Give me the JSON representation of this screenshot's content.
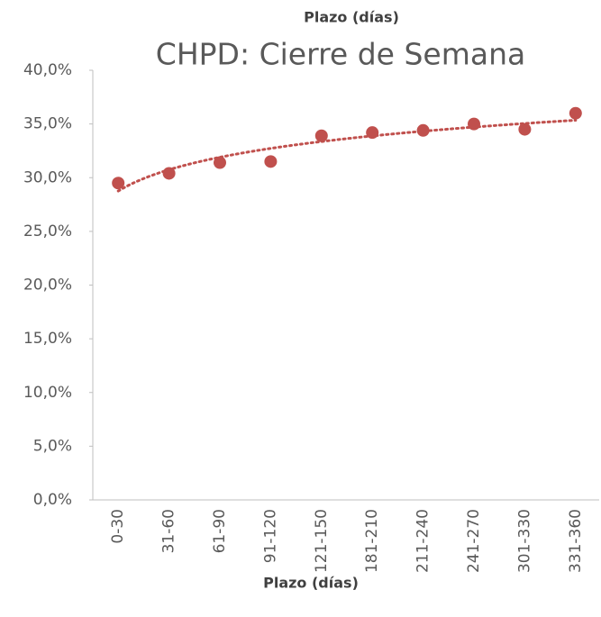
{
  "chart_data": {
    "type": "scatter",
    "title": "CHPD: Cierre de Semana",
    "subtitle": "Plazo (días)",
    "x_label": "Plazo (días)",
    "categories": [
      "0-30",
      "31-60",
      "61-90",
      "91-120",
      "121-150",
      "181-210",
      "211-240",
      "241-270",
      "301-330",
      "331-360"
    ],
    "values": [
      29.5,
      30.4,
      31.4,
      31.5,
      33.9,
      34.2,
      34.4,
      35.0,
      34.5,
      36.0
    ],
    "color": "#c0504d",
    "trendline": "logarithmic",
    "ylim": [
      0,
      40
    ],
    "yticks": [
      {
        "value": 0,
        "label": "0,0%"
      },
      {
        "value": 5,
        "label": "5,0%"
      },
      {
        "value": 10,
        "label": "10,0%"
      },
      {
        "value": 15,
        "label": "15,0%"
      },
      {
        "value": 20,
        "label": "20,0%"
      },
      {
        "value": 25,
        "label": "25,0%"
      },
      {
        "value": 30,
        "label": "30,0%"
      },
      {
        "value": 35,
        "label": "35,0%"
      },
      {
        "value": 40,
        "label": "40,0%"
      }
    ],
    "grid": false
  }
}
